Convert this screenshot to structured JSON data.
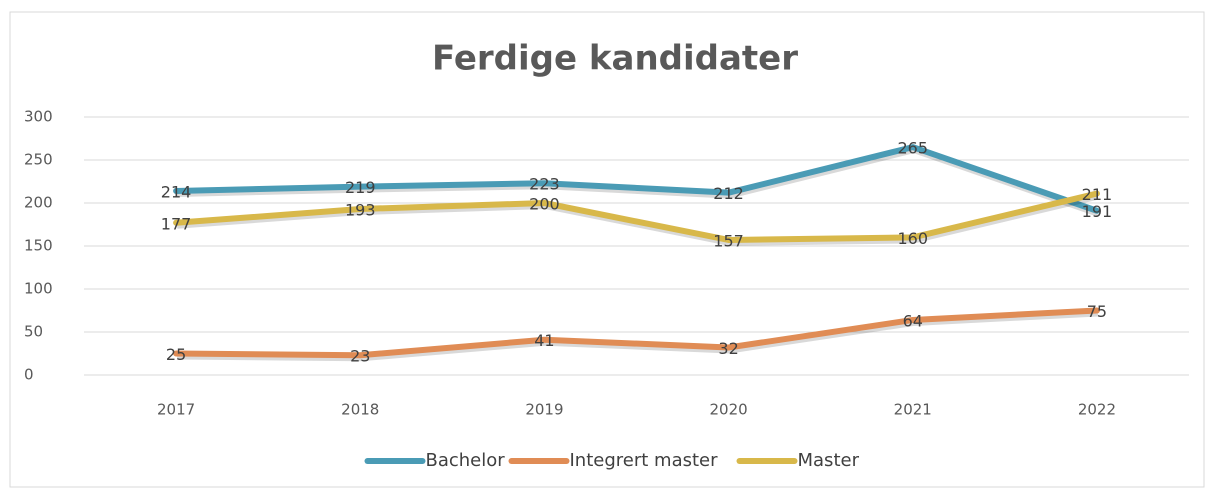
{
  "chart_data": {
    "type": "line",
    "title": "Ferdige kandidater",
    "categories": [
      "2017",
      "2018",
      "2019",
      "2020",
      "2021",
      "2022"
    ],
    "series": [
      {
        "name": "Bachelor",
        "color": "#4a9bb5",
        "values": [
          214,
          219,
          223,
          212,
          265,
          191
        ]
      },
      {
        "name": "Integrert master",
        "color": "#e08c55",
        "values": [
          25,
          23,
          41,
          32,
          64,
          75
        ]
      },
      {
        "name": "Master",
        "color": "#d8b84a",
        "values": [
          177,
          193,
          200,
          157,
          160,
          211
        ]
      }
    ],
    "ylim": [
      0,
      300
    ],
    "yticks": [
      0,
      50,
      100,
      150,
      200,
      250,
      300
    ],
    "grid": true,
    "legend": "bottom"
  }
}
